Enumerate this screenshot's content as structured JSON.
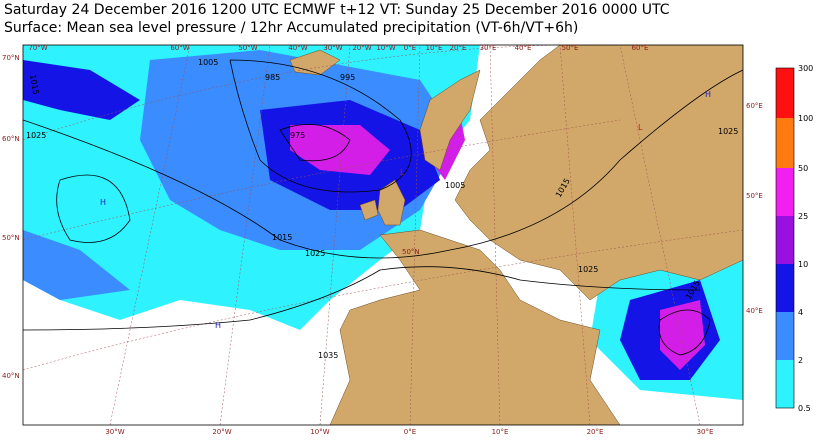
{
  "header": {
    "line1": "Saturday 24 December 2016 1200 UTC  ECMWF  t+12  VT: Sunday 25 December 2016 0000 UTC",
    "line2": "Surface: Mean sea level pressure / 12hr Accumulated precipitation (VT-6h/VT+6h)"
  },
  "map": {
    "top_lon": [
      "70°W",
      "60°W",
      "50°W",
      "40°W",
      "30°W",
      "20°W",
      "10°W",
      "0°E",
      "10°E",
      "20°E",
      "30°E",
      "40°E",
      "50°E",
      "60°E"
    ],
    "bottom_lon": [
      "30°W",
      "20°W",
      "10°W",
      "0°E",
      "10°E",
      "20°E",
      "30°E"
    ],
    "left_lat": [
      "70°N",
      "60°N",
      "50°N",
      "40°N"
    ],
    "right_lat": [
      "60°E",
      "50°E",
      "40°E"
    ],
    "isobars": [
      "1015",
      "1005",
      "995",
      "985",
      "975",
      "1025",
      "1015",
      "1025",
      "1005",
      "1015",
      "1025",
      "1015",
      "1035",
      "1025"
    ],
    "pressure_centres": [
      "H",
      "H",
      "L",
      "L",
      "H"
    ],
    "inner_lat": [
      "50°N"
    ]
  },
  "colorbar": {
    "ticks": [
      "0.5",
      "2",
      "4",
      "10",
      "25",
      "50",
      "100",
      "300"
    ]
  }
}
